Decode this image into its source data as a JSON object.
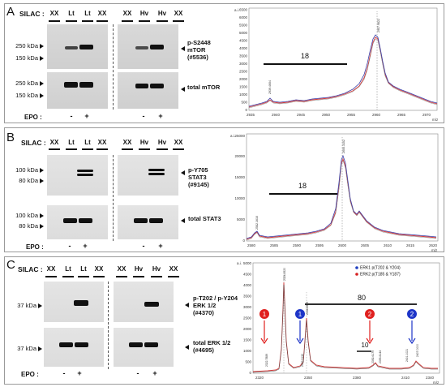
{
  "panels": [
    {
      "letter": "A",
      "silac_label": "SILAC :",
      "lanes": [
        "XX",
        "Lt",
        "Lt",
        "XX",
        "XX",
        "Hv",
        "Hv",
        "XX"
      ],
      "blots": [
        {
          "kda": [
            "250 kDa",
            "150 kDa"
          ],
          "antibody": [
            "p-S2448",
            "mTOR",
            "(#5536)"
          ]
        },
        {
          "kda": [
            "250 kDa",
            "150 kDa"
          ],
          "antibody": [
            "total mTOR"
          ]
        }
      ],
      "epo_label": "EPO :",
      "epo_signs": [
        "-",
        "+",
        "-",
        "+"
      ],
      "spectrum": {
        "y_ticks": [
          "0",
          "500",
          "1000",
          "1500",
          "2000",
          "2500",
          "3000",
          "3500",
          "4000",
          "4500",
          "5000",
          "5500",
          "6000",
          "6500"
        ],
        "x_ticks": [
          "2935",
          "2940",
          "2945",
          "2950",
          "2955",
          "2960",
          "2965",
          "2970"
        ],
        "x_unit": "m/z",
        "y_unit": "a.i.",
        "peak_labels": [
          "2939.4604",
          "2957.9822"
        ],
        "bracket_value": "18"
      }
    },
    {
      "letter": "B",
      "silac_label": "SILAC :",
      "lanes": [
        "XX",
        "Lt",
        "Lt",
        "XX",
        "XX",
        "Hv",
        "Hv",
        "XX"
      ],
      "blots": [
        {
          "kda": [
            "100 kDa",
            "80 kDa"
          ],
          "antibody": [
            "p-Y705",
            "STAT3",
            "(#9145)"
          ]
        },
        {
          "kda": [
            "100 kDa",
            "80 kDa"
          ],
          "antibody": [
            "total STAT3"
          ]
        }
      ],
      "epo_label": "EPO :",
      "epo_signs": [
        "-",
        "+",
        "-",
        "+"
      ],
      "spectrum": {
        "y_ticks": [
          "0",
          "5000",
          "10000",
          "15000",
          "20000",
          "25000"
        ],
        "x_ticks": [
          "2580",
          "2585",
          "2590",
          "2595",
          "2600",
          "2605",
          "2610",
          "2615",
          "2620"
        ],
        "x_unit": "m/z",
        "y_unit": "a.i.",
        "peak_labels": [
          "2582.1610",
          "2600.3102"
        ],
        "bracket_value": "18"
      }
    },
    {
      "letter": "C",
      "silac_label": "SILAC :",
      "lanes": [
        "XX",
        "Lt",
        "Lt",
        "XX",
        "XX",
        "Hv",
        "Hv",
        "XX"
      ],
      "blots": [
        {
          "kda": [
            "37 kDa"
          ],
          "antibody": [
            "p-T202 / p-Y204",
            "ERK 1/2",
            "(#4370)"
          ]
        },
        {
          "kda": [
            "37 kDa"
          ],
          "antibody": [
            "total ERK 1/2",
            "(#4695)"
          ]
        }
      ],
      "epo_label": "EPO :",
      "epo_signs": [
        "-",
        "+",
        "-",
        "+"
      ],
      "spectrum": {
        "y_ticks": [
          "0",
          "500",
          "1000",
          "1500",
          "2000",
          "2500",
          "3000",
          "3500",
          "4000",
          "4500",
          "5000"
        ],
        "x_ticks": [
          "2320",
          "2330",
          "2340",
          "2350",
          "2360",
          "2370",
          "2380",
          "2390",
          "2400",
          "2410",
          "2420"
        ],
        "x_tick_labels_shown": [
          "2320",
          "2350",
          "2380",
          "2410",
          "2340"
        ],
        "x_unit": "m/z",
        "y_unit": "a.i.",
        "peak_labels": [
          "2324.8520",
          "2322.7889",
          "2332.5132",
          "2334.8529",
          "2392.6179",
          "2407.0000",
          "2395.8144",
          "2401.1021"
        ],
        "legend": [
          {
            "label": "ERK1 p(T202 & Y204)",
            "color": "#1f3fbf"
          },
          {
            "label": "ERK2 p(T185 & Y187)",
            "color": "#d62020"
          }
        ],
        "bracket_value": "80",
        "small_bracket_value": "10",
        "markers": [
          {
            "num": "1",
            "color": "#e0201e"
          },
          {
            "num": "1",
            "color": "#1e35c8"
          },
          {
            "num": "2",
            "color": "#e0201e"
          },
          {
            "num": "2",
            "color": "#1e35c8"
          }
        ]
      }
    }
  ]
}
